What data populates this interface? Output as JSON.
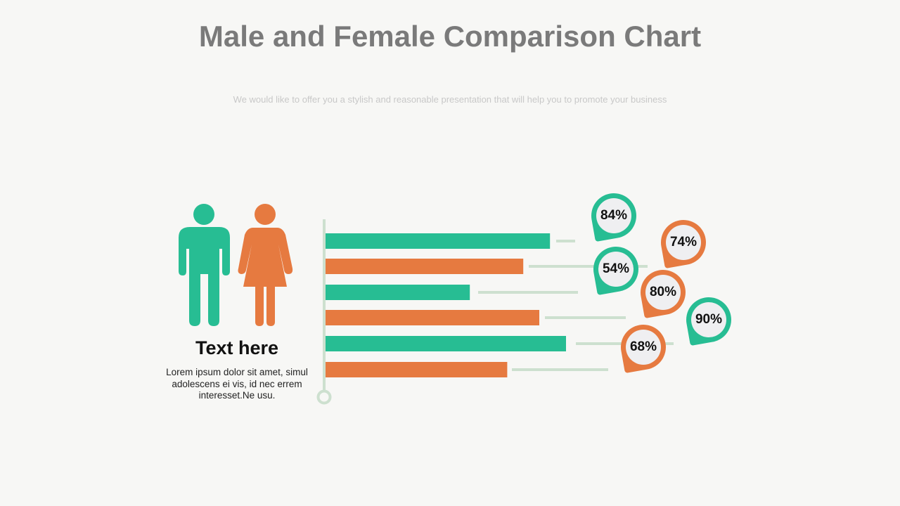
{
  "title": "Male and Female Comparison Chart",
  "subtitle": "We would like to offer you a stylish and reasonable presentation that will help you to promote your business",
  "legend_block": {
    "heading": "Text here",
    "body": "Lorem ipsum dolor sit amet, simul adolescens ei vis, id nec errem interesset.Ne usu.",
    "icons": [
      "male-icon",
      "female-icon"
    ]
  },
  "colors": {
    "male": "#27bd93",
    "female": "#e67a40",
    "connector": "#cde0cf",
    "axis": "#cde0cf"
  },
  "chart_data": {
    "type": "bar",
    "orientation": "horizontal",
    "xlim": [
      0,
      100
    ],
    "unit": "%",
    "bars": [
      {
        "group": "male",
        "value": 84,
        "label": "84%"
      },
      {
        "group": "female",
        "value": 74,
        "label": "74%"
      },
      {
        "group": "male",
        "value": 54,
        "label": "54%"
      },
      {
        "group": "female",
        "value": 80,
        "label": "80%"
      },
      {
        "group": "male",
        "value": 90,
        "label": "90%"
      },
      {
        "group": "female",
        "value": 68,
        "label": "68%"
      }
    ]
  }
}
